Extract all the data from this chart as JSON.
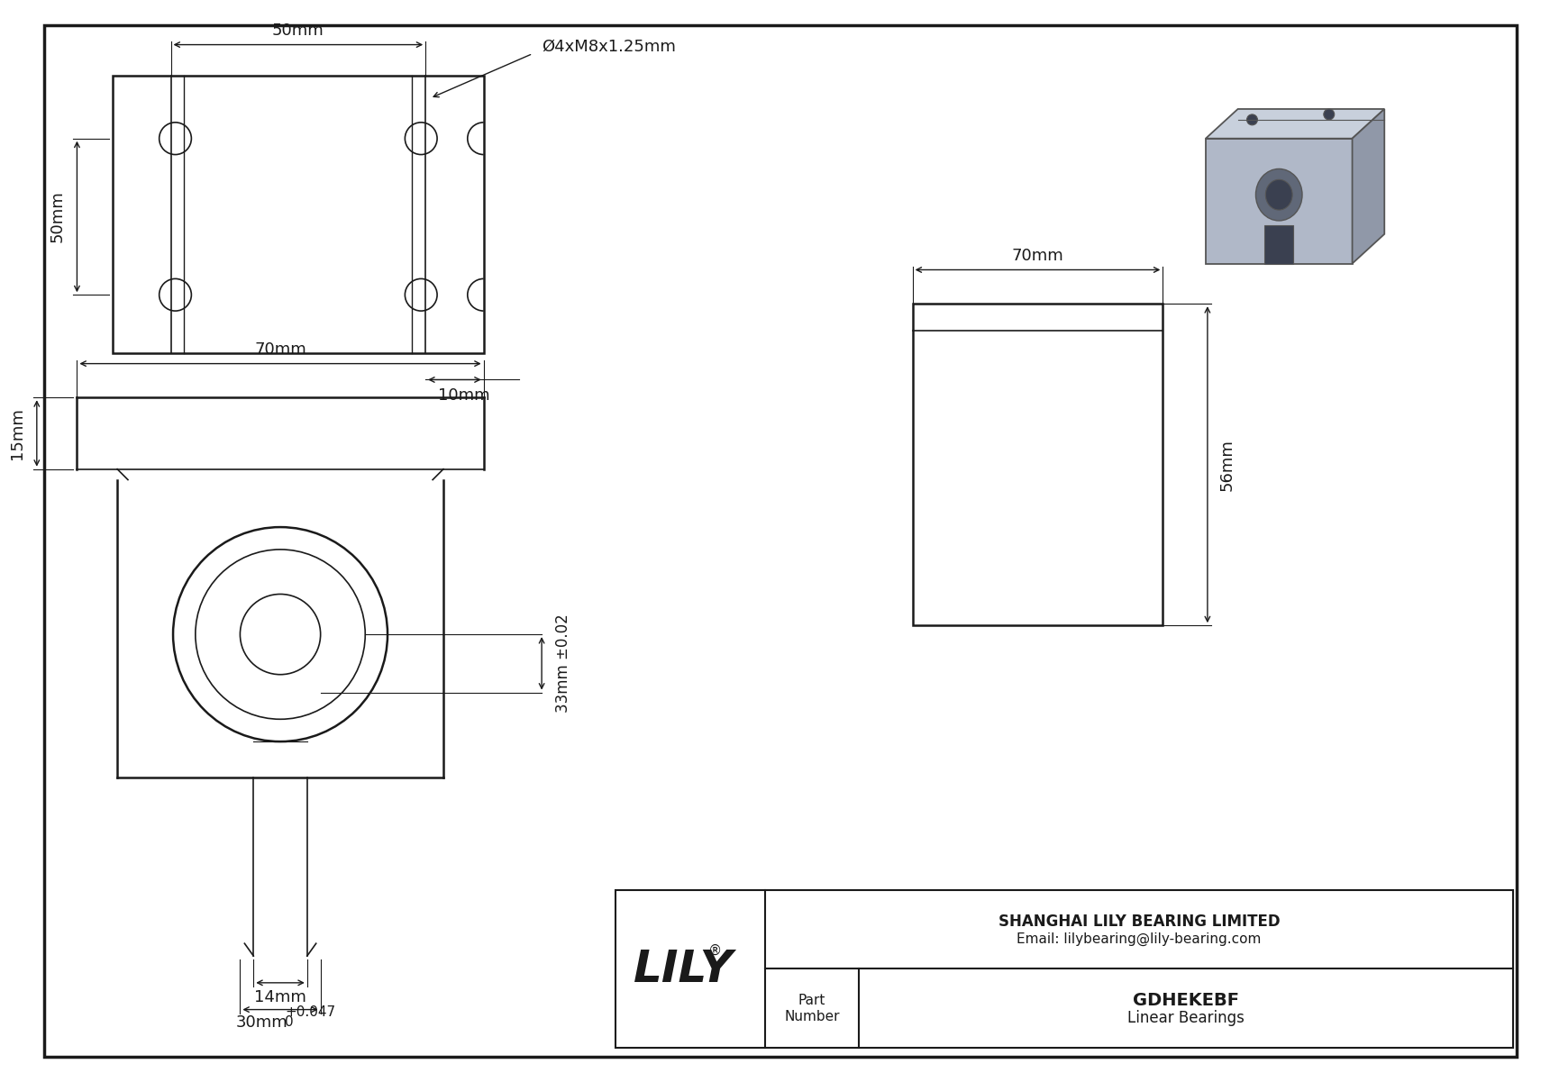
{
  "bg_color": "#ffffff",
  "line_color": "#1a1a1a",
  "dim_50mm_top": "50mm",
  "dim_50mm_left": "50mm",
  "dim_10mm": "10mm",
  "dim_phi": "Ø4xM8x1.25mm",
  "dim_70mm_bot": "70mm",
  "dim_15mm": "15mm",
  "dim_33mm": "33mm ±0.02",
  "dim_14mm": "14mm",
  "dim_30mm": "30mm",
  "dim_tol_top": "+0.047",
  "dim_tol_bot": "0",
  "dim_70mm_right": "70mm",
  "dim_56mm": "56mm",
  "company": "SHANGHAI LILY BEARING LIMITED",
  "email": "Email: lilybearing@lily-bearing.com",
  "logo": "LILY",
  "logo_r": "®",
  "part_label": "Part\nNumber",
  "part_name": "GDHEKEBF",
  "part_type": "Linear Bearings",
  "font_size_dim": 13,
  "font_size_logo": 36,
  "iso_face_color": "#b0b8c8",
  "iso_top_color": "#c8d0dc",
  "iso_right_color": "#9098a8",
  "iso_dark_color": "#3a4050",
  "iso_mid_color": "#606878",
  "iso_edge_color": "#555555"
}
